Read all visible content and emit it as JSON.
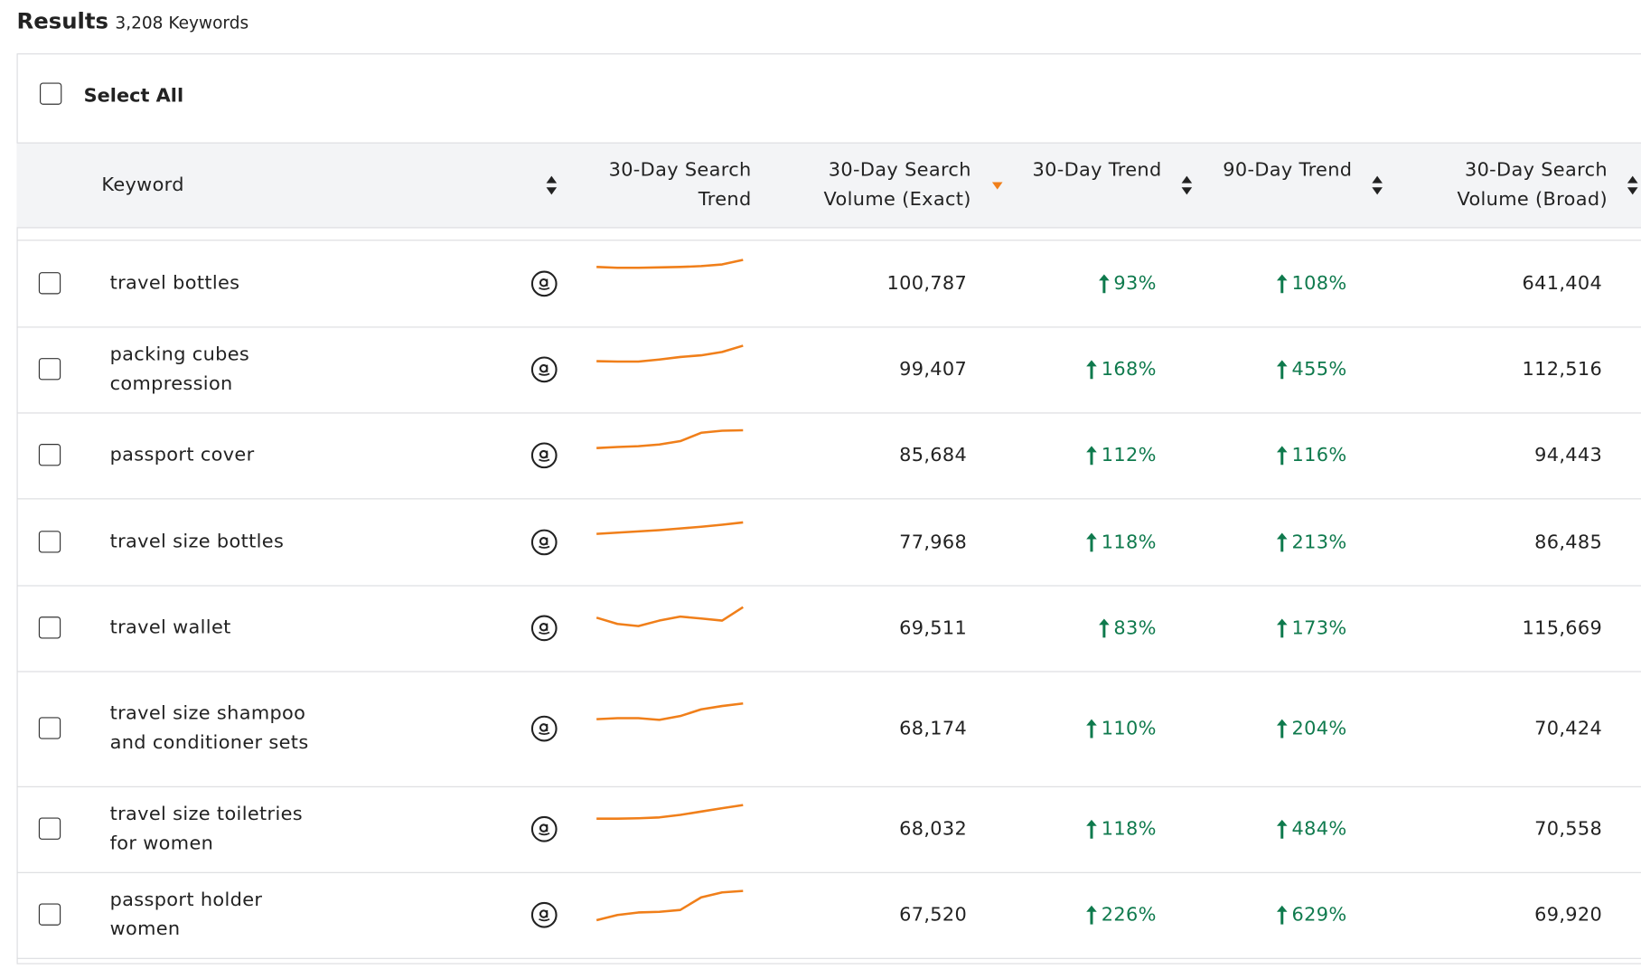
{
  "header": {
    "title": "Results",
    "count": "3,208 Keywords"
  },
  "select_all": "Select All",
  "table": {
    "columns": [
      "Keyword",
      "30-Day Search Trend",
      "30-Day Search Volume (Exact)",
      "30-Day Trend",
      "90-Day Trend",
      "30-Day Search Volume (Broad)"
    ],
    "trend_color": "#f07f1a",
    "rows": [
      {
        "keyword": "travel bottles",
        "trend": [
          4,
          3.8,
          3.8,
          3.9,
          4,
          4.2,
          4.6,
          5.7
        ],
        "exact": "100,787",
        "trend30": "93%",
        "trend90": "108%",
        "broad": "641,404"
      },
      {
        "keyword": "packing cubes compression",
        "trend": [
          2,
          1.9,
          1.9,
          2.4,
          3,
          3.4,
          4.2,
          5.7
        ],
        "exact": "99,407",
        "trend30": "168%",
        "trend90": "455%",
        "broad": "112,516"
      },
      {
        "keyword": "passport cover",
        "trend": [
          1.75,
          2,
          2.2,
          2.6,
          3.4,
          5.4,
          5.9,
          6
        ],
        "exact": "85,684",
        "trend30": "112%",
        "trend90": "116%",
        "broad": "94,443"
      },
      {
        "keyword": "travel size bottles",
        "trend": [
          2,
          2.3,
          2.6,
          2.9,
          3.3,
          3.7,
          4.2,
          4.75
        ],
        "exact": "77,968",
        "trend30": "118%",
        "trend90": "213%",
        "broad": "86,485"
      },
      {
        "keyword": "travel wallet",
        "trend": [
          2.5,
          1,
          0.5,
          1.8,
          2.75,
          2.3,
          1.8,
          5
        ],
        "exact": "69,511",
        "trend30": "83%",
        "trend90": "173%",
        "broad": "115,669"
      },
      {
        "keyword": "travel size shampoo and conditioner sets",
        "trend": [
          2.25,
          2.5,
          2.5,
          2.1,
          3,
          4.6,
          5.4,
          6
        ],
        "exact": "68,174",
        "trend30": "110%",
        "trend90": "204%",
        "broad": "70,424"
      },
      {
        "keyword": "travel size toiletries for women",
        "trend": [
          2.5,
          2.5,
          2.6,
          2.8,
          3.4,
          4.2,
          5,
          5.75
        ],
        "exact": "68,032",
        "trend30": "118%",
        "trend90": "484%",
        "broad": "70,558"
      },
      {
        "keyword": "passport holder women",
        "trend": [
          -1.25,
          0,
          0.6,
          0.75,
          1.2,
          4.2,
          5.4,
          5.75
        ],
        "exact": "67,520",
        "trend30": "226%",
        "trend90": "629%",
        "broad": "69,920"
      }
    ]
  }
}
